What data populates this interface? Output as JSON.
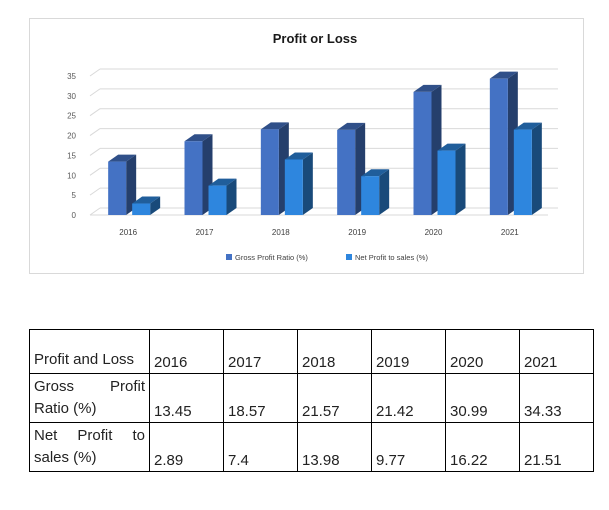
{
  "chart_data": {
    "type": "bar",
    "title": "Profit or Loss",
    "categories": [
      "2016",
      "2017",
      "2018",
      "2019",
      "2020",
      "2021"
    ],
    "series": [
      {
        "name": "Gross Profit Ratio (%)",
        "values": [
          13.45,
          18.57,
          21.57,
          21.42,
          30.99,
          34.33
        ],
        "color": "#4472C4"
      },
      {
        "name": "Net Profit to sales (%)",
        "values": [
          2.89,
          7.4,
          13.98,
          9.77,
          16.22,
          21.51
        ],
        "color": "#2E86DE"
      }
    ],
    "yticks": [
      "0",
      "5",
      "10",
      "15",
      "20",
      "25",
      "30",
      "35"
    ],
    "ylim": [
      0,
      35
    ],
    "grid": true,
    "legend_position": "bottom",
    "style": "3d-column"
  },
  "table": {
    "header_label": "Profit and Loss",
    "years": [
      "2016",
      "2017",
      "2018",
      "2019",
      "2020",
      "2021"
    ],
    "rows": [
      {
        "label": "Gross Profit Ratio (%)",
        "values": [
          "13.45",
          "18.57",
          "21.57",
          "21.42",
          "30.99",
          "34.33"
        ]
      },
      {
        "label": "Net Profit to sales (%)",
        "values": [
          "2.89",
          "7.4",
          "13.98",
          "9.77",
          "16.22",
          "21.51"
        ]
      }
    ]
  }
}
